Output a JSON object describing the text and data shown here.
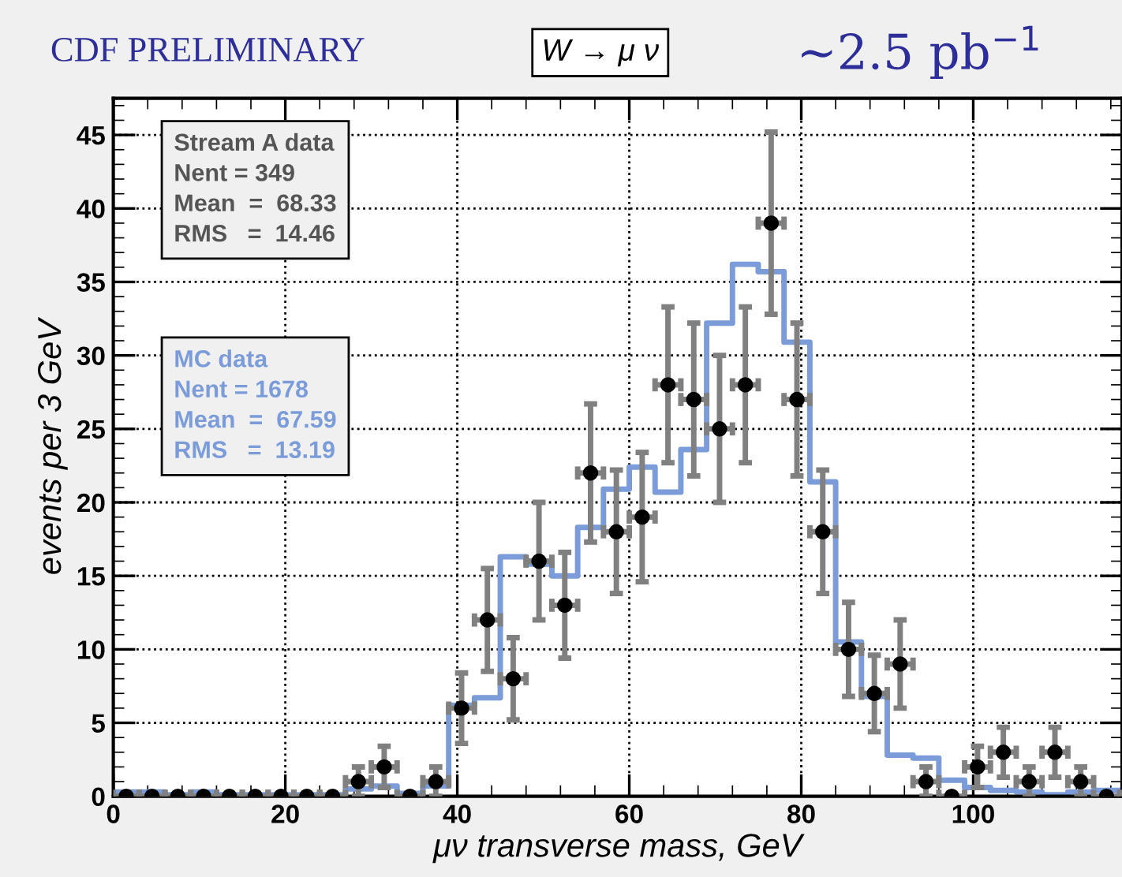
{
  "chart_data": {
    "type": "scatter",
    "title": "CDF PRELIMINARY",
    "subtitle": "W → μ ν",
    "xlabel": "μν transverse mass, GeV",
    "ylabel": "events per 3 GeV",
    "annotations": [
      "~2.5 pb$^{−1}$",
      "Nent = 349\nMean  =  68.33\nRMS   =  14.46",
      "Nent = 1678\nMean  =  67.59\nRMS   =  13.19"
    ],
    "xlim": [
      0,
      117.3
    ],
    "xticks": [
      0,
      20,
      40,
      60,
      80,
      100
    ],
    "ylim": [
      0,
      47.5
    ],
    "yticks": [
      0,
      5,
      10,
      15,
      20,
      25,
      30,
      35,
      40,
      45
    ],
    "grid": true,
    "series": [
      {
        "name": "Stream A data",
        "marker": "circle",
        "color": "#000000",
        "x": [
          1.5,
          4.5,
          7.5,
          10.5,
          13.5,
          16.5,
          19.5,
          22.5,
          25.5,
          28.5,
          31.5,
          34.5,
          37.5,
          40.5,
          43.5,
          46.5,
          49.5,
          52.5,
          55.5,
          58.5,
          61.5,
          64.5,
          67.5,
          70.5,
          73.5,
          76.5,
          79.5,
          82.5,
          85.5,
          88.5,
          91.5,
          94.5,
          97.5,
          100.5,
          103.5,
          106.5,
          109.5,
          112.5,
          115.5
        ],
        "values": [
          0,
          0,
          0,
          0,
          0,
          0,
          0,
          0,
          0,
          1,
          2,
          0,
          1,
          6,
          12,
          8,
          16,
          13,
          22,
          18,
          19,
          28,
          27,
          25,
          28,
          39,
          27,
          18,
          10,
          7,
          9,
          1,
          0,
          2,
          3,
          1,
          3,
          1,
          0
        ],
        "errors": [
          null,
          null,
          null,
          null,
          null,
          null,
          null,
          null,
          null,
          1,
          1.4,
          null,
          1,
          2.4,
          3.5,
          2.8,
          4,
          3.6,
          4.7,
          4.2,
          4.4,
          5.3,
          5.2,
          5,
          5.3,
          6.2,
          5.2,
          4.2,
          3.2,
          2.6,
          3,
          1,
          null,
          1.4,
          1.7,
          1,
          1.7,
          1,
          null
        ],
        "xerrors": [
          1.5,
          1.5,
          1.5,
          1.5,
          1.5,
          1.5,
          1.5,
          1.5,
          1.5,
          1.5,
          1.5,
          1.5,
          1.5,
          1.5,
          1.5,
          1.5,
          1.5,
          1.5,
          1.5,
          1.5,
          1.5,
          1.5,
          1.5,
          1.5,
          1.5,
          1.5,
          1.5,
          1.5,
          1.5,
          1.5,
          1.5,
          1.5,
          1.5,
          1.5,
          1.5,
          1.5,
          1.5,
          1.5,
          1.5
        ]
      },
      {
        "name": "MC data",
        "type": "step",
        "color": "#7b9cd8",
        "x": [
          0,
          3,
          6,
          9,
          12,
          15,
          18,
          21,
          24,
          27,
          30,
          33,
          36,
          39,
          42,
          45,
          48,
          51,
          54,
          57,
          60,
          63,
          66,
          69,
          72,
          75,
          78,
          81,
          84,
          87,
          90,
          93,
          96,
          99,
          102,
          105,
          108,
          111,
          114,
          117
        ],
        "values": [
          0.3,
          0.3,
          0.1,
          0.3,
          0.1,
          0.1,
          0.1,
          0.1,
          0.1,
          0.5,
          0.7,
          0.2,
          0.7,
          6.2,
          6.7,
          16.3,
          15.8,
          15.0,
          18.3,
          20.9,
          22.4,
          20.7,
          23.6,
          32.2,
          36.2,
          35.7,
          30.9,
          21.4,
          10.5,
          6.8,
          2.8,
          2.6,
          1.1,
          0.6,
          0.4,
          0.3,
          0.1,
          0.3,
          0.4,
          0.4
        ]
      }
    ]
  }
}
